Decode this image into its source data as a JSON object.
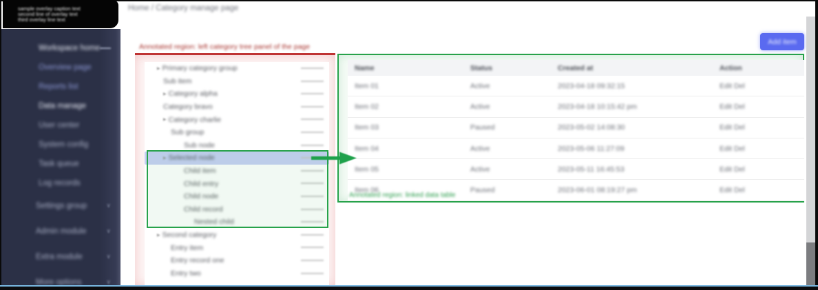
{
  "window": {
    "overlay_box_lines": [
      "sample overlay caption text",
      "second line of overlay text",
      "third overlay line text"
    ],
    "breadcrumb": "Home / Category manage page"
  },
  "toolbar": {
    "primary_button_label": "Add item"
  },
  "sidebar": {
    "items": [
      {
        "label": "Workspace home",
        "tone": "bright",
        "group": false,
        "mark": true
      },
      {
        "label": "Overview page",
        "tone": "indigo",
        "group": false,
        "mark": false
      },
      {
        "label": "Reports list",
        "tone": "indigo",
        "group": false,
        "mark": false
      },
      {
        "label": "Data manage",
        "tone": "bright",
        "group": false,
        "mark": false
      },
      {
        "label": "User center",
        "tone": "muted",
        "group": false,
        "mark": false
      },
      {
        "label": "System config",
        "tone": "muted",
        "group": false,
        "mark": false
      },
      {
        "label": "Task queue",
        "tone": "muted",
        "group": false,
        "mark": false
      },
      {
        "label": "Log records",
        "tone": "muted",
        "group": false,
        "mark": false
      },
      {
        "label": "Settings group",
        "tone": "muted",
        "group": true,
        "mark": false
      },
      {
        "label": "Admin module",
        "tone": "muted",
        "group": true,
        "mark": false
      },
      {
        "label": "Extra module",
        "tone": "muted",
        "group": true,
        "mark": false
      },
      {
        "label": "More options",
        "tone": "muted",
        "group": true,
        "mark": false
      }
    ]
  },
  "annotations": {
    "red_caption": "Annotated region: left category tree panel of the page",
    "green_caption": "Annotated region: linked data table",
    "red_color": "#bf3434",
    "green_color": "#27a24a",
    "selected_row_color": "#c7d0f5",
    "accent_blue": "#5a6af0"
  },
  "tree": {
    "items": [
      {
        "label": "Primary category group",
        "level": 0,
        "caret": true,
        "selected": false
      },
      {
        "label": "Sub item",
        "level": 1,
        "caret": false,
        "selected": false
      },
      {
        "label": "Category alpha",
        "level": 1,
        "caret": true,
        "selected": false
      },
      {
        "label": "Category bravo",
        "level": 1,
        "caret": false,
        "selected": false
      },
      {
        "label": "Category charlie",
        "level": 1,
        "caret": true,
        "selected": false
      },
      {
        "label": "Sub group",
        "level": 2,
        "caret": false,
        "selected": false
      },
      {
        "label": "Sub node",
        "level": 3,
        "caret": false,
        "selected": false
      },
      {
        "label": "Selected node",
        "level": 1,
        "caret": true,
        "selected": true
      },
      {
        "label": "Child item",
        "level": 3,
        "caret": false,
        "selected": false
      },
      {
        "label": "Child entry",
        "level": 3,
        "caret": false,
        "selected": false
      },
      {
        "label": "Child node",
        "level": 3,
        "caret": false,
        "selected": false
      },
      {
        "label": "Child record",
        "level": 3,
        "caret": false,
        "selected": false
      },
      {
        "label": "Nested child",
        "level": 4,
        "caret": false,
        "selected": false
      },
      {
        "label": "Second category",
        "level": 0,
        "caret": true,
        "selected": false
      },
      {
        "label": "Entry item",
        "level": 2,
        "caret": false,
        "selected": false
      },
      {
        "label": "Entry record one",
        "level": 2,
        "caret": false,
        "selected": false
      },
      {
        "label": "Entry two",
        "level": 2,
        "caret": false,
        "selected": false
      }
    ]
  },
  "table": {
    "columns": [
      "Name",
      "Status",
      "Created at",
      "Action"
    ],
    "rows": [
      [
        "Item 01",
        "Active",
        "2023-04-18 09:32:15",
        "Edit Del"
      ],
      [
        "Item 02",
        "Active",
        "2023-04-18 10:15:42 pm",
        "Edit Del"
      ],
      [
        "Item 03",
        "Paused",
        "2023-05-02 14:08:30",
        "Edit Del"
      ],
      [
        "Item 04",
        "Active",
        "2023-05-06 11:27:09",
        "Edit Del"
      ],
      [
        "Item 05",
        "Active",
        "2023-05-11 16:45:53",
        "Edit Del"
      ],
      [
        "Item 06",
        "Paused",
        "2023-06-01 08:19:27 pm",
        "Edit Del"
      ]
    ]
  }
}
